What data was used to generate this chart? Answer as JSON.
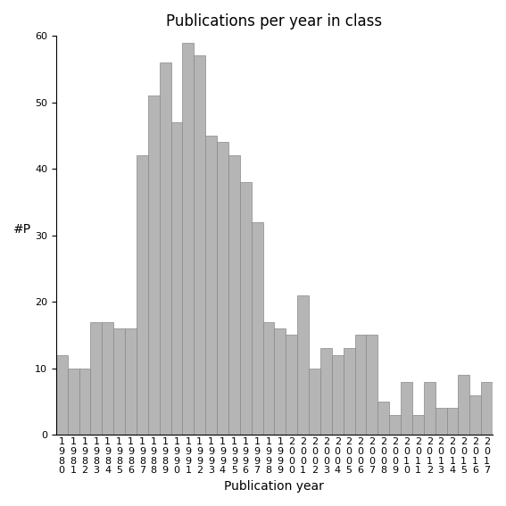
{
  "title": "Publications per year in class",
  "xlabel": "Publication year",
  "ylabel": "#P",
  "ylim": [
    0,
    60
  ],
  "yticks": [
    0,
    10,
    20,
    30,
    40,
    50,
    60
  ],
  "years": [
    "1980",
    "1981",
    "1982",
    "1983",
    "1984",
    "1985",
    "1986",
    "1987",
    "1988",
    "1989",
    "1990",
    "1991",
    "1992",
    "1993",
    "1994",
    "1995",
    "1996",
    "1997",
    "1998",
    "1999",
    "2000",
    "2001",
    "2002",
    "2003",
    "2004",
    "2005",
    "2006",
    "2007",
    "2008",
    "2009",
    "2010",
    "2011",
    "2012",
    "2013",
    "2014",
    "2015",
    "2016",
    "2017"
  ],
  "values": [
    12,
    10,
    10,
    17,
    17,
    16,
    16,
    42,
    51,
    56,
    47,
    59,
    57,
    45,
    44,
    42,
    38,
    32,
    17,
    16,
    15,
    21,
    10,
    13,
    12,
    13,
    15,
    15,
    5,
    3,
    8,
    3,
    8,
    4,
    4,
    9,
    6,
    8
  ],
  "bar_color": "#b5b5b5",
  "bar_edgecolor": "#888888",
  "background_color": "#ffffff",
  "title_fontsize": 12,
  "axis_label_fontsize": 10,
  "tick_fontsize": 8
}
